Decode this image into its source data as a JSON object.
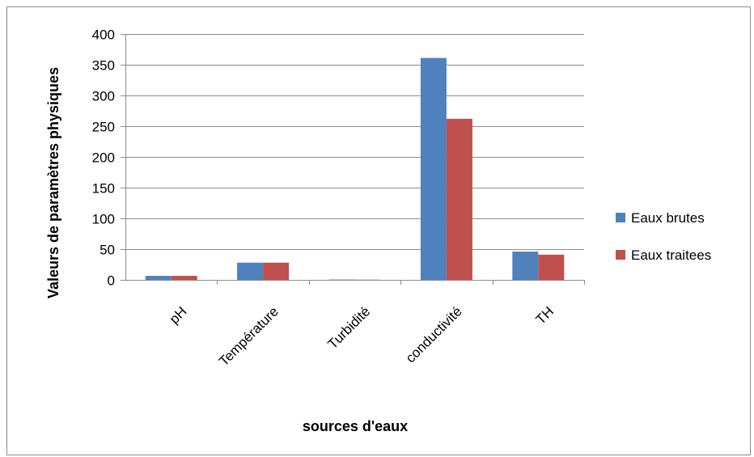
{
  "chart_data": {
    "type": "bar",
    "title": "",
    "xlabel": "sources d'eaux",
    "ylabel": "Valeurs de paramètres physiques",
    "categories": [
      "pH",
      "Température",
      "Turbidité",
      "conductivité",
      "TH"
    ],
    "series": [
      {
        "name": "Eaux brutes",
        "color": "#4f81bd",
        "values": [
          6.5,
          28,
          0.5,
          361,
          46
        ]
      },
      {
        "name": "Eaux traitees",
        "color": "#c0504d",
        "values": [
          6.5,
          28,
          0.3,
          262,
          41
        ]
      }
    ],
    "ylim": [
      0,
      400
    ],
    "yticks": [
      0,
      50,
      100,
      150,
      200,
      250,
      300,
      350,
      400
    ],
    "grid": true,
    "legend_position": "right"
  }
}
